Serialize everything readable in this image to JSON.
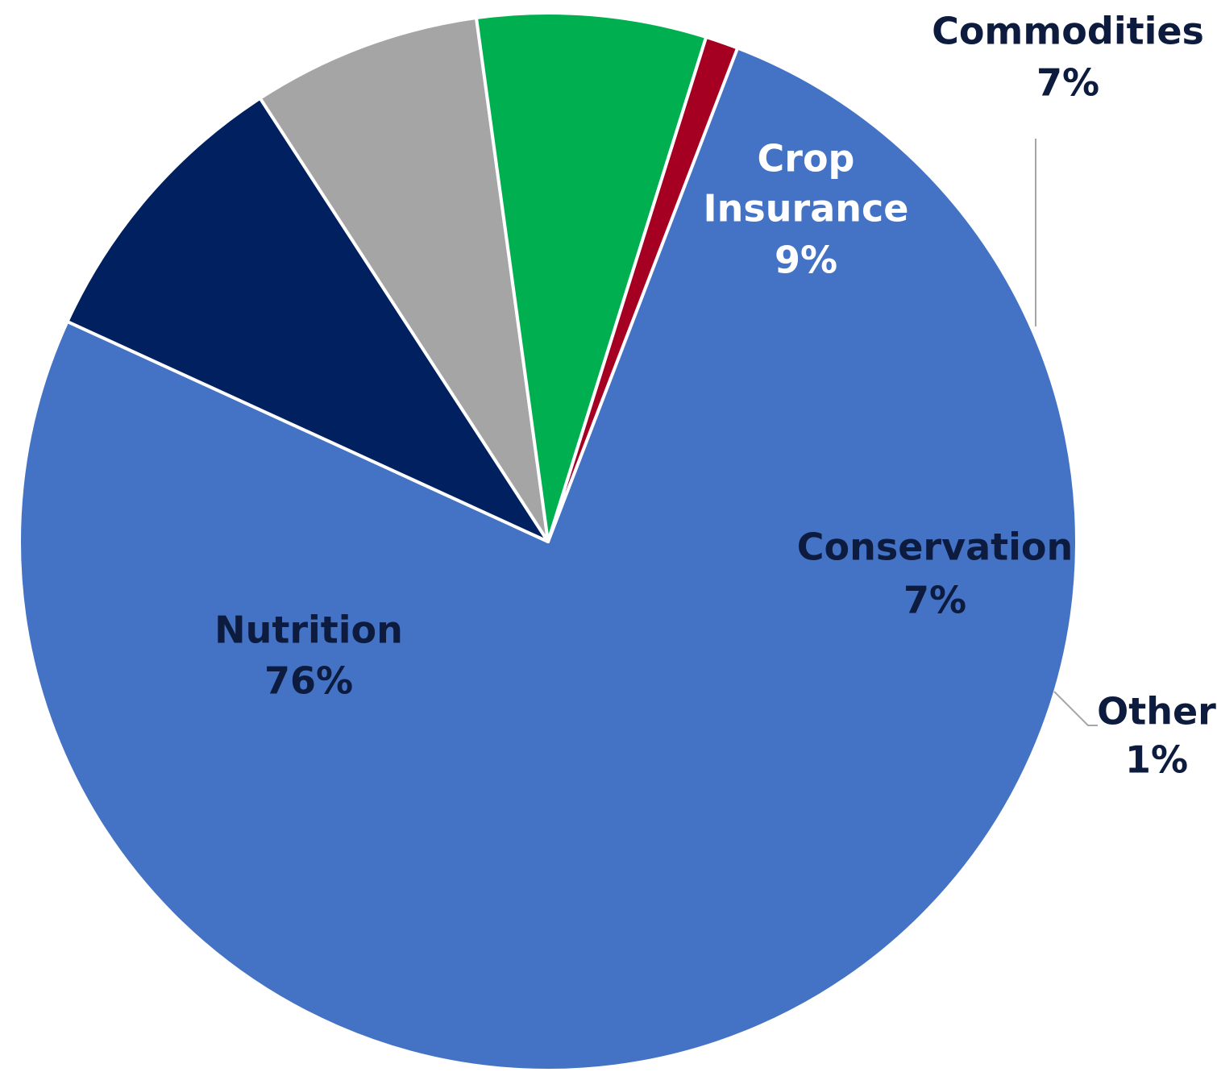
{
  "chart_data": {
    "type": "pie",
    "title": "",
    "slices": [
      {
        "name": "Nutrition",
        "label": "Nutrition",
        "pct_text": "76%",
        "value": 76,
        "color": "#4472C4",
        "label_color": "#0d1b3e"
      },
      {
        "name": "Crop Insurance",
        "label": "Crop Insurance",
        "pct_text": "9%",
        "value": 9,
        "color": "#002060",
        "label_color": "#ffffff"
      },
      {
        "name": "Commodities",
        "label": "Commodities",
        "pct_text": "7%",
        "value": 7,
        "color": "#A5A5A5",
        "label_color": "#0d1b3e"
      },
      {
        "name": "Conservation",
        "label": "Conservation",
        "pct_text": "7%",
        "value": 7,
        "color": "#00B050",
        "label_color": "#0d1b3e"
      },
      {
        "name": "Other",
        "label": "Other",
        "pct_text": "1%",
        "value": 1,
        "color": "#A50021",
        "label_color": "#0d1b3e"
      }
    ]
  }
}
